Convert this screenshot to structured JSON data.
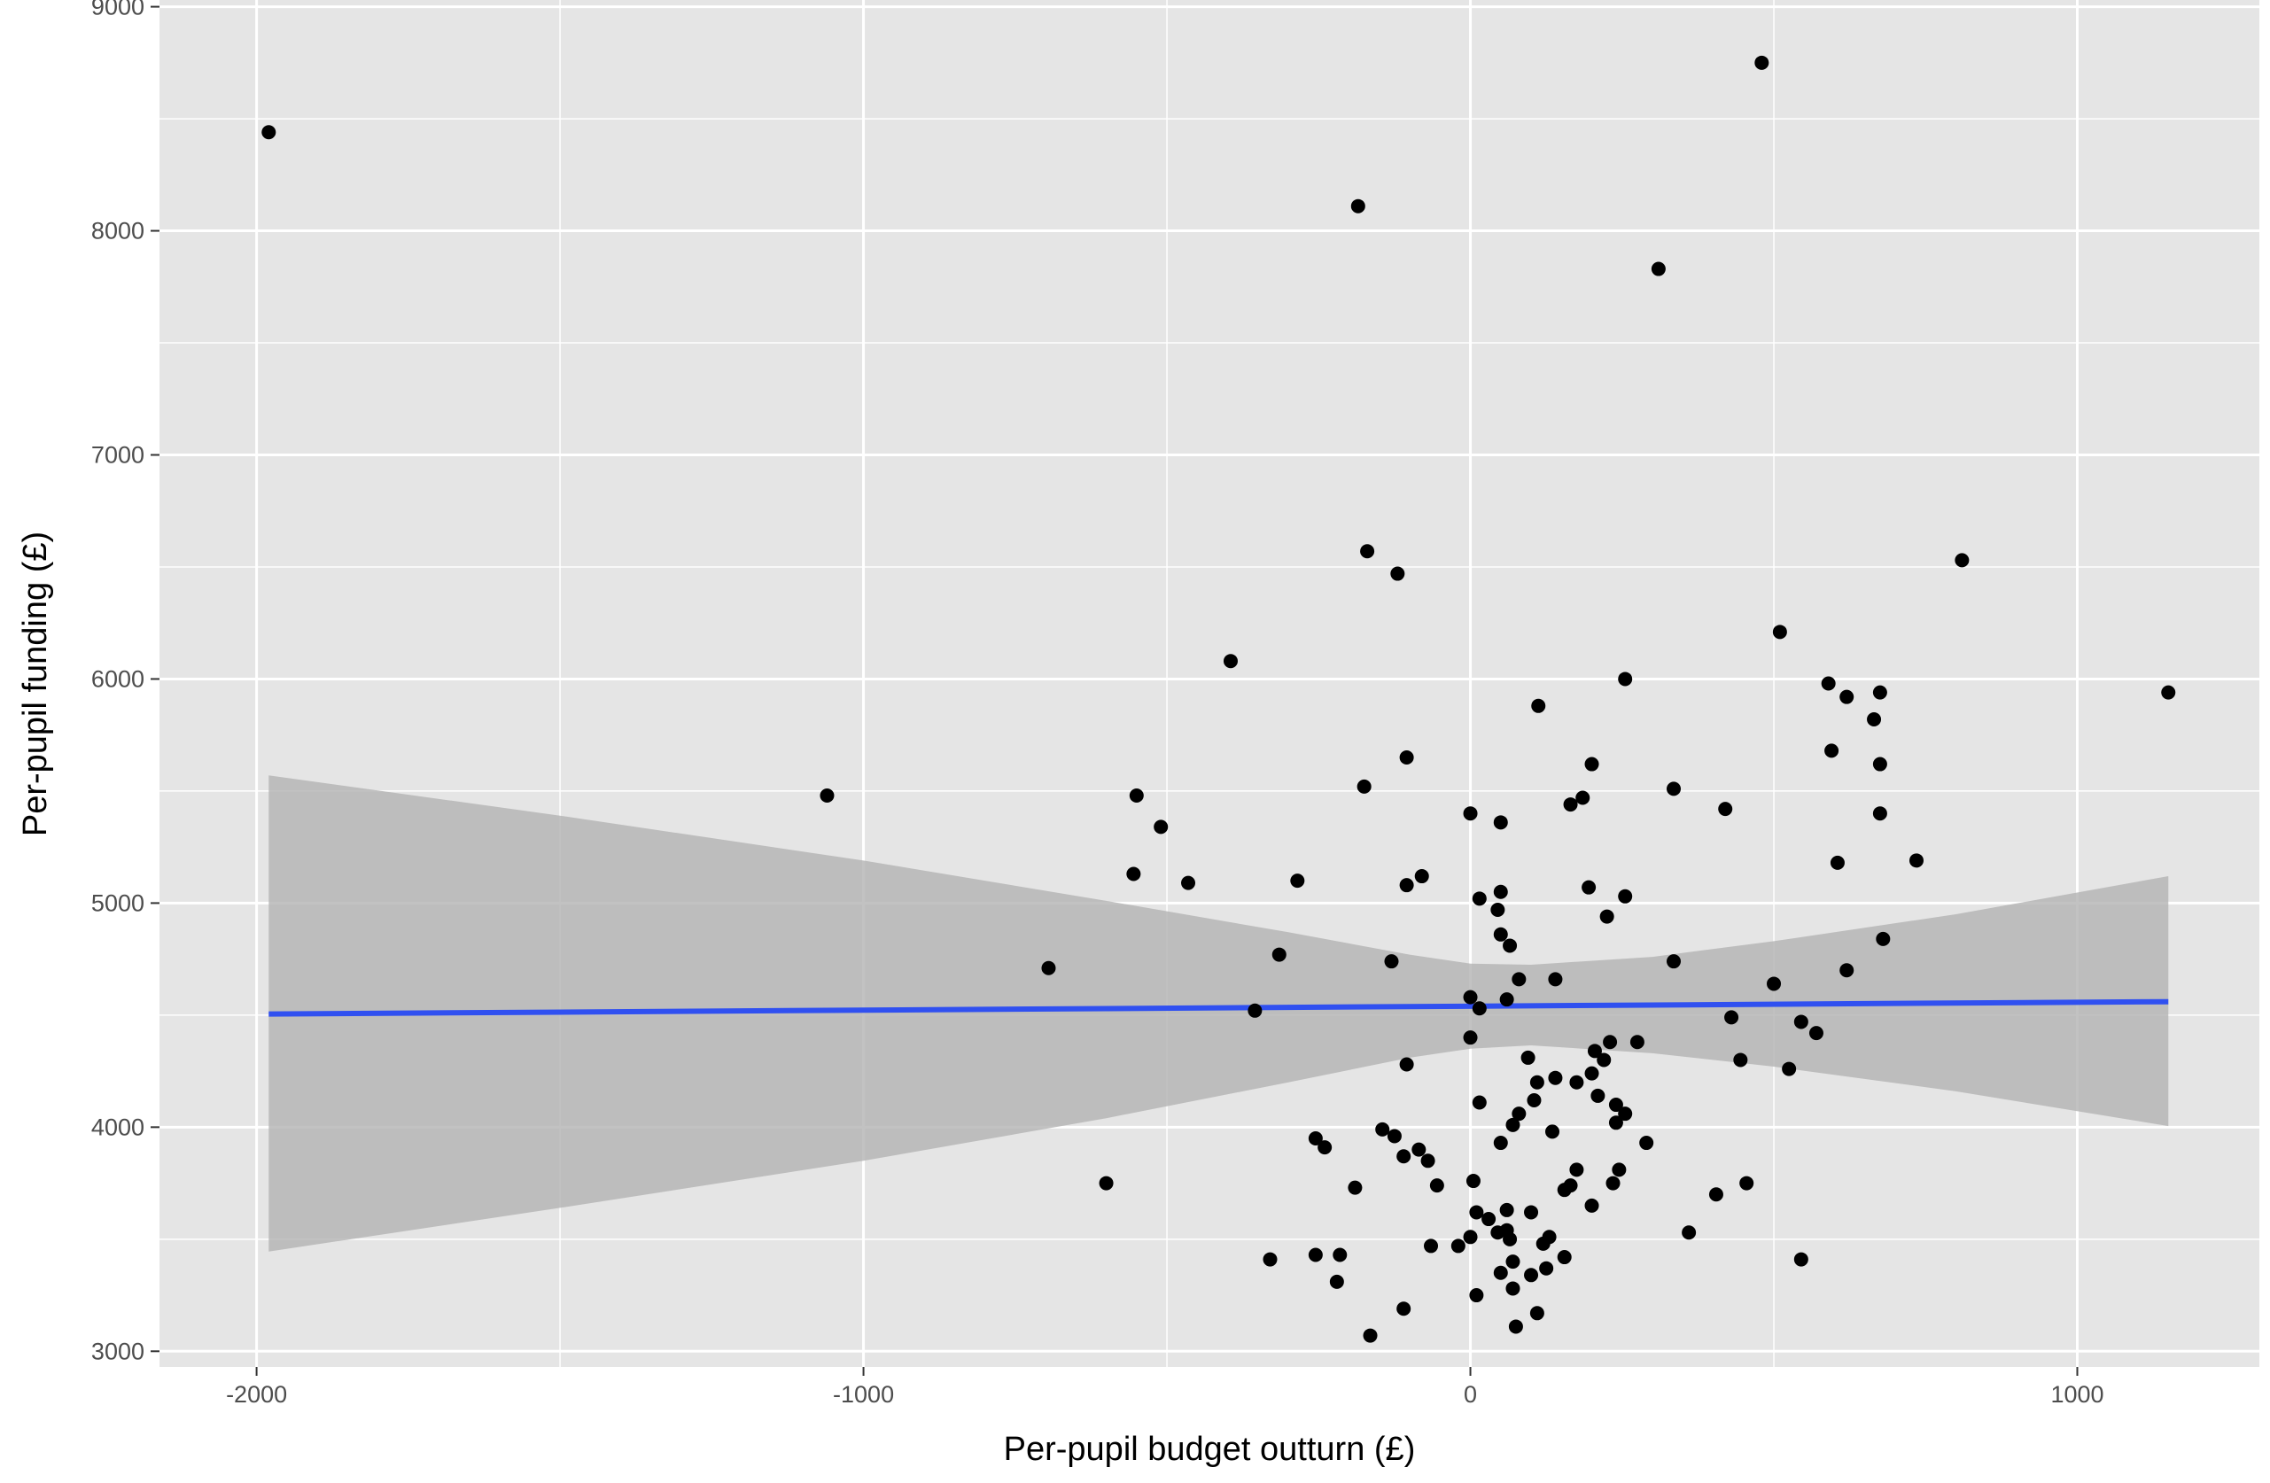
{
  "chart_data": {
    "type": "scatter",
    "title": "",
    "xlabel": "Per-pupil budget outturn (£)",
    "ylabel": "Per-pupil funding (£)",
    "xlim": [
      -2160,
      1300
    ],
    "ylim": [
      2930,
      9030
    ],
    "x_ticks": [
      -2000,
      -1000,
      0,
      1000
    ],
    "y_ticks": [
      3000,
      4000,
      5000,
      6000,
      7000,
      8000,
      9000
    ],
    "grid": true,
    "legend": "none",
    "colors": {
      "panel": "#e5e5e5",
      "grid": "#ffffff",
      "points": "#000000",
      "fit_line": "#3050f0",
      "ribbon": "#b3b3b3"
    },
    "points": [
      [
        -1980,
        8440
      ],
      [
        480,
        8750
      ],
      [
        -185,
        8110
      ],
      [
        310,
        7830
      ],
      [
        -170,
        6570
      ],
      [
        -120,
        6470
      ],
      [
        810,
        6530
      ],
      [
        -395,
        6080
      ],
      [
        510,
        6210
      ],
      [
        255,
        6000
      ],
      [
        590,
        5980
      ],
      [
        620,
        5920
      ],
      [
        675,
        5940
      ],
      [
        1150,
        5940
      ],
      [
        112,
        5880
      ],
      [
        665,
        5820
      ],
      [
        595,
        5680
      ],
      [
        -105,
        5650
      ],
      [
        675,
        5620
      ],
      [
        200,
        5620
      ],
      [
        -1060,
        5480
      ],
      [
        -550,
        5480
      ],
      [
        -175,
        5520
      ],
      [
        335,
        5510
      ],
      [
        185,
        5470
      ],
      [
        165,
        5440
      ],
      [
        420,
        5420
      ],
      [
        -510,
        5340
      ],
      [
        0,
        5400
      ],
      [
        50,
        5360
      ],
      [
        675,
        5400
      ],
      [
        605,
        5180
      ],
      [
        735,
        5190
      ],
      [
        -555,
        5130
      ],
      [
        -465,
        5090
      ],
      [
        -285,
        5100
      ],
      [
        -80,
        5120
      ],
      [
        -105,
        5080
      ],
      [
        195,
        5070
      ],
      [
        255,
        5030
      ],
      [
        15,
        5020
      ],
      [
        50,
        5050
      ],
      [
        45,
        4970
      ],
      [
        225,
        4940
      ],
      [
        50,
        4860
      ],
      [
        65,
        4810
      ],
      [
        680,
        4840
      ],
      [
        -695,
        4710
      ],
      [
        -315,
        4770
      ],
      [
        -130,
        4740
      ],
      [
        335,
        4740
      ],
      [
        620,
        4700
      ],
      [
        80,
        4660
      ],
      [
        140,
        4660
      ],
      [
        500,
        4640
      ],
      [
        0,
        4580
      ],
      [
        60,
        4570
      ],
      [
        15,
        4530
      ],
      [
        -355,
        4520
      ],
      [
        430,
        4490
      ],
      [
        545,
        4470
      ],
      [
        570,
        4420
      ],
      [
        0,
        4400
      ],
      [
        230,
        4380
      ],
      [
        275,
        4380
      ],
      [
        205,
        4340
      ],
      [
        95,
        4310
      ],
      [
        220,
        4300
      ],
      [
        445,
        4300
      ],
      [
        525,
        4260
      ],
      [
        -105,
        4280
      ],
      [
        200,
        4240
      ],
      [
        110,
        4200
      ],
      [
        140,
        4220
      ],
      [
        175,
        4200
      ],
      [
        210,
        4140
      ],
      [
        105,
        4120
      ],
      [
        240,
        4100
      ],
      [
        15,
        4110
      ],
      [
        255,
        4060
      ],
      [
        80,
        4060
      ],
      [
        240,
        4020
      ],
      [
        70,
        4010
      ],
      [
        -145,
        3990
      ],
      [
        -125,
        3960
      ],
      [
        135,
        3980
      ],
      [
        -255,
        3950
      ],
      [
        -240,
        3910
      ],
      [
        290,
        3930
      ],
      [
        -85,
        3900
      ],
      [
        -110,
        3870
      ],
      [
        50,
        3930
      ],
      [
        -70,
        3850
      ],
      [
        175,
        3810
      ],
      [
        245,
        3810
      ],
      [
        -600,
        3750
      ],
      [
        235,
        3750
      ],
      [
        165,
        3740
      ],
      [
        -55,
        3740
      ],
      [
        5,
        3760
      ],
      [
        455,
        3750
      ],
      [
        -190,
        3730
      ],
      [
        405,
        3700
      ],
      [
        155,
        3720
      ],
      [
        200,
        3650
      ],
      [
        60,
        3630
      ],
      [
        10,
        3620
      ],
      [
        100,
        3620
      ],
      [
        30,
        3590
      ],
      [
        -20,
        3470
      ],
      [
        -65,
        3470
      ],
      [
        0,
        3510
      ],
      [
        45,
        3530
      ],
      [
        60,
        3540
      ],
      [
        360,
        3530
      ],
      [
        65,
        3500
      ],
      [
        120,
        3480
      ],
      [
        130,
        3510
      ],
      [
        -330,
        3410
      ],
      [
        -255,
        3430
      ],
      [
        -215,
        3430
      ],
      [
        70,
        3400
      ],
      [
        155,
        3420
      ],
      [
        545,
        3410
      ],
      [
        100,
        3340
      ],
      [
        125,
        3370
      ],
      [
        50,
        3350
      ],
      [
        -220,
        3310
      ],
      [
        70,
        3280
      ],
      [
        10,
        3250
      ],
      [
        -110,
        3190
      ],
      [
        110,
        3170
      ],
      [
        75,
        3110
      ],
      [
        -165,
        3070
      ]
    ],
    "fit": {
      "x": [
        -1980,
        1150
      ],
      "y": [
        4505,
        4560
      ]
    },
    "ribbon": {
      "x": [
        -1980,
        -1500,
        -1000,
        -600,
        -300,
        -100,
        0,
        100,
        300,
        500,
        800,
        1150
      ],
      "upper": [
        5570,
        5390,
        5190,
        5010,
        4870,
        4770,
        4730,
        4725,
        4760,
        4830,
        4950,
        5120
      ],
      "lower": [
        3445,
        3640,
        3850,
        4040,
        4200,
        4310,
        4350,
        4365,
        4330,
        4270,
        4160,
        4005
      ]
    }
  }
}
